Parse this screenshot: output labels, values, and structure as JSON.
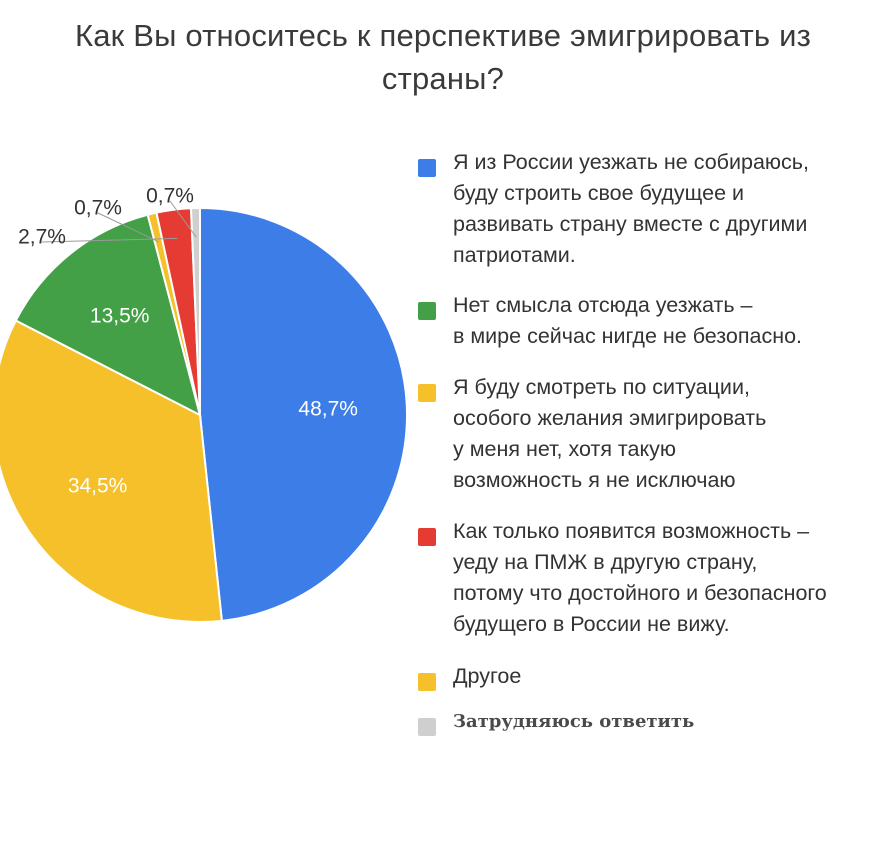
{
  "title_line1": "Как Вы относитесь к перспективе эмигрировать из",
  "title_line2": "страны?",
  "chart_data": {
    "type": "pie",
    "title": "Как Вы относитесь к перспективе эмигрировать из страны?",
    "slices": [
      {
        "name": "Я из России уезжать не собираюсь, буду строить свое будущее и развивать страну вместе с другими патриотами.",
        "value": 48.7,
        "label": "48,7%",
        "color": "#3d7de8"
      },
      {
        "name": "Я буду смотреть по ситуации, особого желания эмигрировать у меня нет, хотя такую возможность я не исключаю",
        "value": 34.5,
        "label": "34,5%",
        "color": "#f5c02a"
      },
      {
        "name": "Нет смысла отсюда уезжать – в мире сейчас нигде не безопасно.",
        "value": 13.5,
        "label": "13,5%",
        "color": "#43a047"
      },
      {
        "name": "Другое",
        "value": 0.7,
        "label": "0,7%",
        "color": "#f5c02a"
      },
      {
        "name": "Как только появится возможность – уеду на ПМЖ в другую страну, потому что достойного и безопасного будущего в России не вижу.",
        "value": 2.7,
        "label": "2,7%",
        "color": "#e53b32"
      },
      {
        "name": "Затрудняюсь ответить",
        "value": 0.7,
        "label": "0,7%",
        "color": "#cfcfcf"
      }
    ],
    "legend_placement": "right"
  },
  "legend": [
    {
      "text": "Я из России уезжать не собираюсь, буду строить свое будущее и развивать страну вместе с другими патриотами.",
      "color": "#3d7de8",
      "lines": [
        "Я из России уезжать не собираюсь,",
        "буду строить свое будущее и",
        "развивать страну вместе с другими",
        "патриотами."
      ]
    },
    {
      "text": "Нет смысла отсюда уезжать – в мире сейчас нигде не безопасно.",
      "color": "#43a047",
      "lines": [
        "Нет смысла отсюда уезжать –",
        "в мире сейчас нигде не безопасно."
      ]
    },
    {
      "text": "Я буду смотреть по ситуации, особого желания эмигрировать у меня нет, хотя такую возможность я не исключаю",
      "color": "#f5c02a",
      "lines": [
        "Я буду смотреть по ситуации,",
        "особого желания эмигрировать",
        "у меня нет, хотя такую",
        "возможность я не исключаю"
      ]
    },
    {
      "text": "Как только появится возможность – уеду на ПМЖ в другую страну, потому что достойного и безопасного будущего в России не вижу.",
      "color": "#e53b32",
      "lines": [
        "Как только появится возможность –",
        "уеду на ПМЖ в другую страну,",
        "потому что достойного и безопасного",
        "будущего в России не вижу."
      ]
    },
    {
      "text": "Другое",
      "color": "#f5c02a",
      "lines": [
        "Другое"
      ]
    },
    {
      "text": "Затрудняюсь ответить",
      "color": "#cfcfcf",
      "lines": [
        "Затрудняюсь ответить"
      ]
    }
  ]
}
